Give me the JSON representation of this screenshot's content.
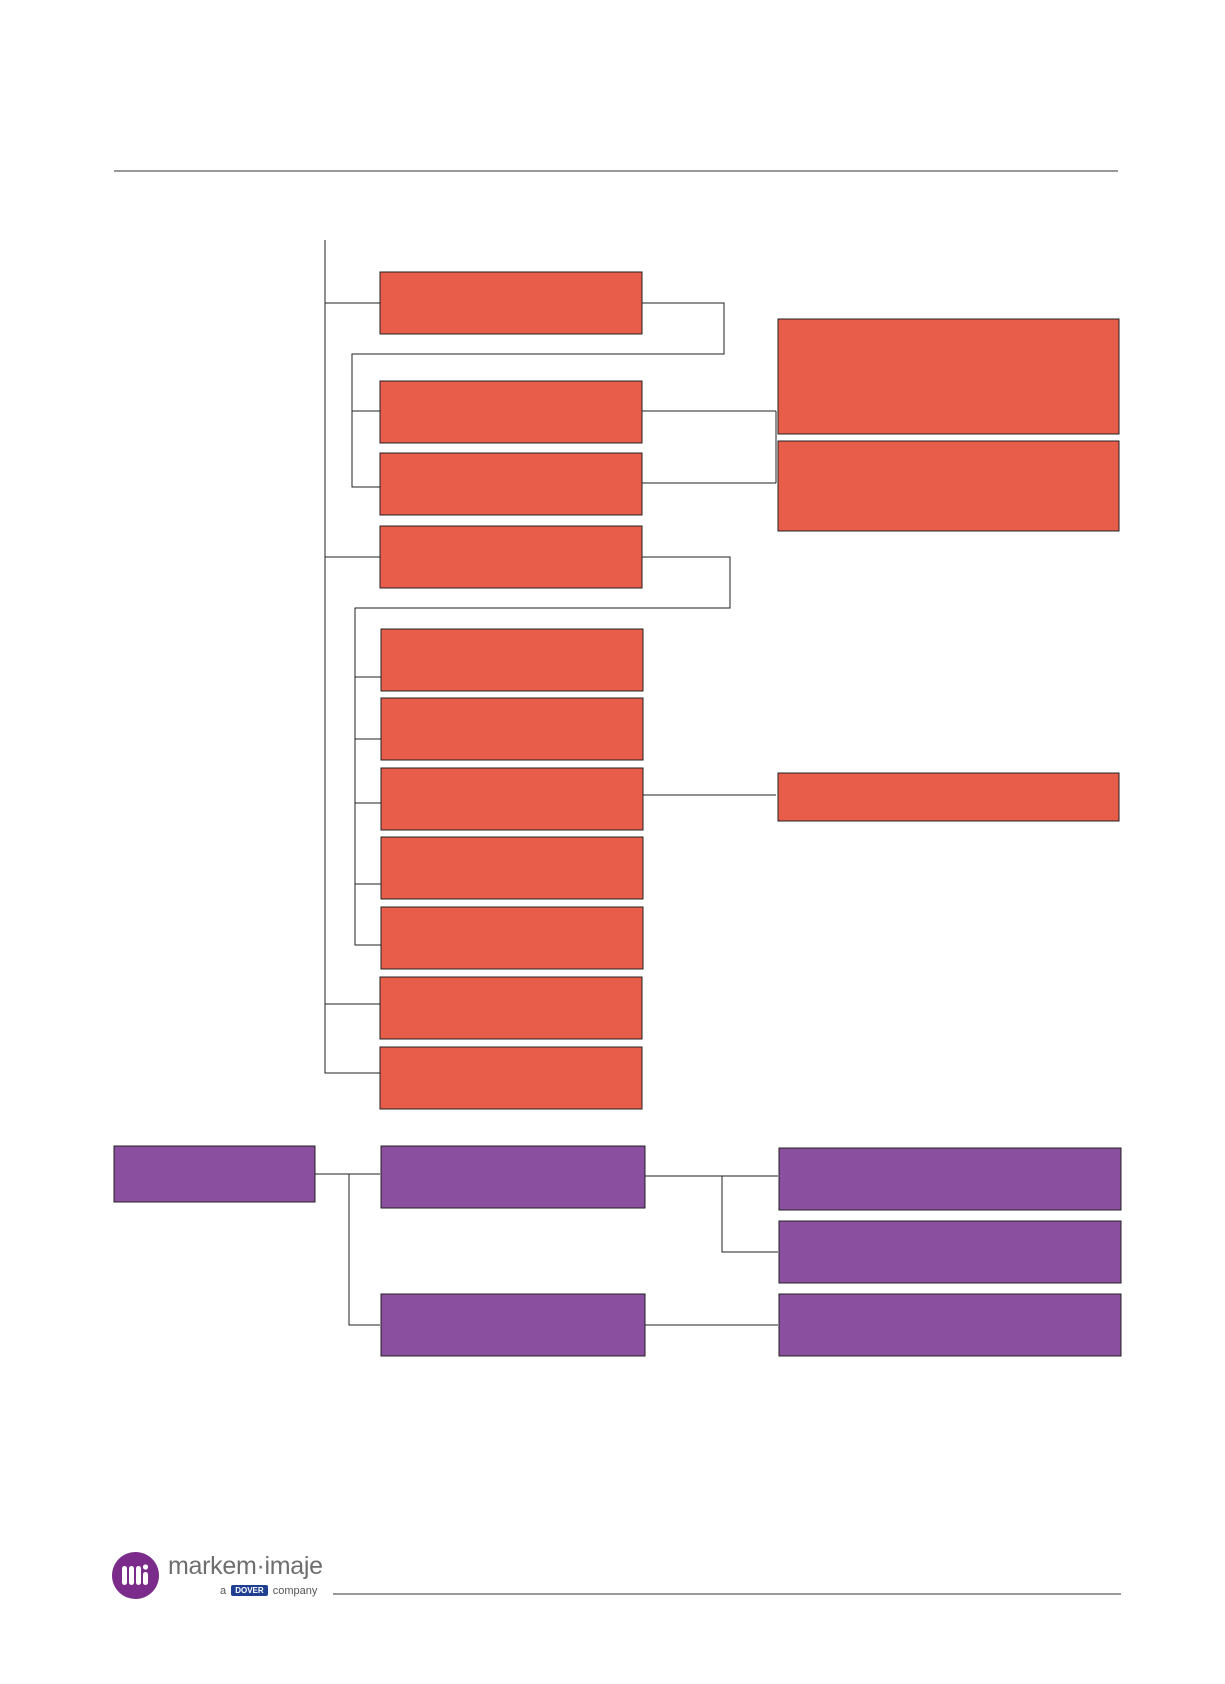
{
  "colors": {
    "red_box": "#e85c4a",
    "purple_box": "#8b4fa0",
    "line": "#222222",
    "brand_purple": "#7b2c8b",
    "dover_blue": "#1f3f93"
  },
  "footer": {
    "brand_name": "markem·imaje",
    "tagline_prefix": "a",
    "tagline_badge": "DOVER",
    "tagline_suffix": "company"
  }
}
